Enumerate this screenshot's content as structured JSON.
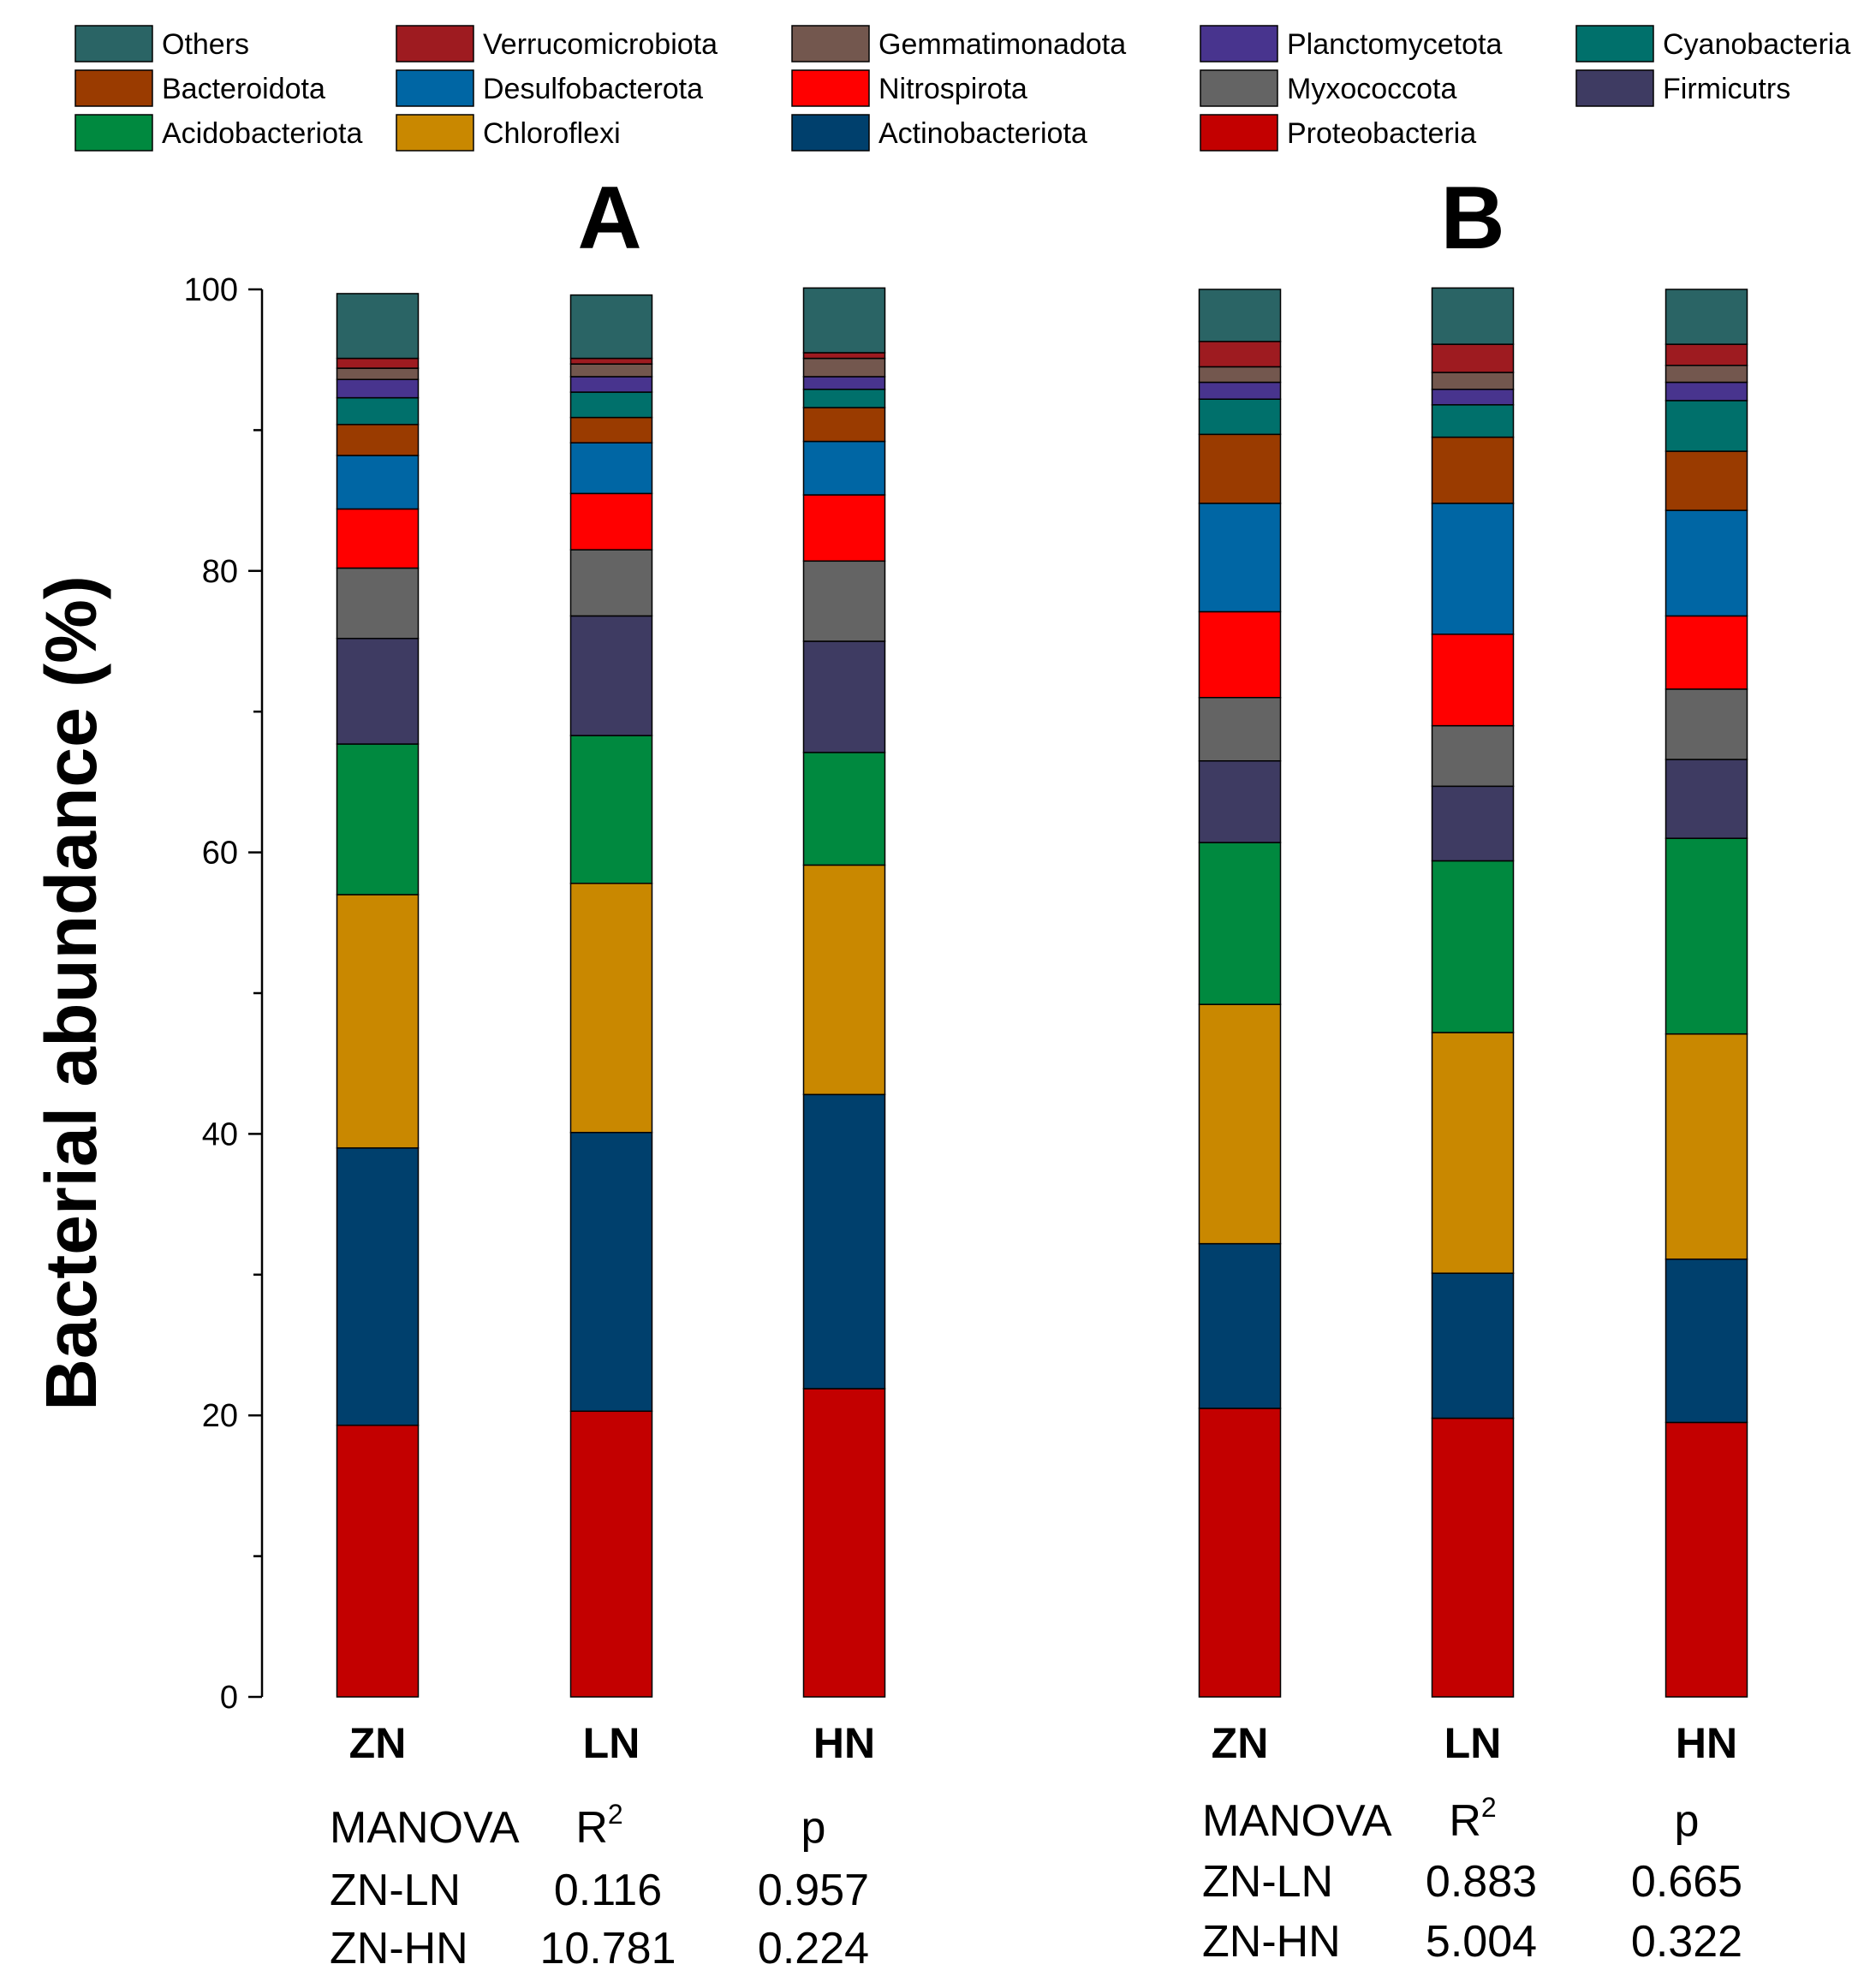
{
  "colors": {
    "Others": "#2a6465",
    "Verrucomicrobiota": "#9e1b20",
    "Gemmatimonadota": "#73574e",
    "Planctomycetota": "#48348e",
    "Cyanobacteria": "#00706b",
    "Bacteroidota": "#9a3b00",
    "Desulfobacterota": "#0066a4",
    "Nitrospirota": "#ff0000",
    "Myxococcota": "#646464",
    "Firmicutrs": "#3e3b62",
    "Acidobacteriota": "#00893f",
    "Chloroflexi": "#c98800",
    "Actinobacteriota": "#00406d",
    "Proteobacteria": "#c30000"
  },
  "chart_data": {
    "type": "bar",
    "stacked": true,
    "ylabel": "Bacterial abundance (%)",
    "ylim": [
      0,
      100
    ],
    "yticks": [
      0,
      20,
      40,
      60,
      80,
      100
    ],
    "legend": [
      "Others",
      "Verrucomicrobiota",
      "Gemmatimonadota",
      "Planctomycetota",
      "Cyanobacteria",
      "Bacteroidota",
      "Desulfobacterota",
      "Nitrospirota",
      "Myxococcota",
      "Firmicutrs",
      "Acidobacteriota",
      "Chloroflexi",
      "Actinobacteriota",
      "Proteobacteria"
    ],
    "panels": [
      {
        "label": "A",
        "categories": [
          "ZN",
          "LN",
          "HN"
        ],
        "series": [
          {
            "name": "Proteobacteria",
            "values": [
              19.3,
              20.3,
              21.9
            ]
          },
          {
            "name": "Actinobacteriota",
            "values": [
              19.7,
              19.8,
              20.9
            ]
          },
          {
            "name": "Chloroflexi",
            "values": [
              18.0,
              17.7,
              16.3
            ]
          },
          {
            "name": "Acidobacteriota",
            "values": [
              10.7,
              10.5,
              8.0
            ]
          },
          {
            "name": "Firmicutrs",
            "values": [
              7.5,
              8.5,
              7.9
            ]
          },
          {
            "name": "Myxococcota",
            "values": [
              5.0,
              4.7,
              5.7
            ]
          },
          {
            "name": "Nitrospirota",
            "values": [
              4.2,
              4.0,
              4.7
            ]
          },
          {
            "name": "Desulfobacterota",
            "values": [
              3.8,
              3.6,
              3.8
            ]
          },
          {
            "name": "Bacteroidota",
            "values": [
              2.2,
              1.8,
              2.4
            ]
          },
          {
            "name": "Cyanobacteria",
            "values": [
              1.9,
              1.8,
              1.3
            ]
          },
          {
            "name": "Planctomycetota",
            "values": [
              1.3,
              1.1,
              0.9
            ]
          },
          {
            "name": "Gemmatimonadota",
            "values": [
              0.8,
              0.9,
              1.3
            ]
          },
          {
            "name": "Verrucomicrobiota",
            "values": [
              0.7,
              0.4,
              0.4
            ]
          },
          {
            "name": "Others",
            "values": [
              4.6,
              4.5,
              4.6
            ]
          }
        ],
        "stats": {
          "headers": [
            "MANOVA",
            "R",
            "2",
            "p"
          ],
          "rows": [
            {
              "label": "ZN-LN",
              "r2": "0.116",
              "p": "0.957"
            },
            {
              "label": "ZN-HN",
              "r2": "10.781",
              "p": "0.224"
            }
          ]
        }
      },
      {
        "label": "B",
        "categories": [
          "ZN",
          "LN",
          "HN"
        ],
        "series": [
          {
            "name": "Proteobacteria",
            "values": [
              20.5,
              19.8,
              19.5
            ]
          },
          {
            "name": "Actinobacteriota",
            "values": [
              11.7,
              10.3,
              11.6
            ]
          },
          {
            "name": "Chloroflexi",
            "values": [
              17.0,
              17.1,
              16.0
            ]
          },
          {
            "name": "Acidobacteriota",
            "values": [
              11.5,
              12.2,
              13.9
            ]
          },
          {
            "name": "Firmicutrs",
            "values": [
              5.8,
              5.3,
              5.6
            ]
          },
          {
            "name": "Myxococcota",
            "values": [
              4.5,
              4.3,
              5.0
            ]
          },
          {
            "name": "Nitrospirota",
            "values": [
              6.1,
              6.5,
              5.2
            ]
          },
          {
            "name": "Desulfobacterota",
            "values": [
              7.7,
              9.3,
              7.5
            ]
          },
          {
            "name": "Bacteroidota",
            "values": [
              4.9,
              4.7,
              4.2
            ]
          },
          {
            "name": "Cyanobacteria",
            "values": [
              2.5,
              2.3,
              3.6
            ]
          },
          {
            "name": "Planctomycetota",
            "values": [
              1.2,
              1.1,
              1.3
            ]
          },
          {
            "name": "Gemmatimonadota",
            "values": [
              1.1,
              1.2,
              1.2
            ]
          },
          {
            "name": "Verrucomicrobiota",
            "values": [
              1.8,
              2.0,
              1.5
            ]
          },
          {
            "name": "Others",
            "values": [
              3.7,
              4.0,
              3.9
            ]
          }
        ],
        "stats": {
          "headers": [
            "MANOVA",
            "R",
            "2",
            "p"
          ],
          "rows": [
            {
              "label": "ZN-LN",
              "r2": "0.883",
              "p": "0.665"
            },
            {
              "label": "ZN-HN",
              "r2": "5.004",
              "p": "0.322"
            }
          ]
        }
      }
    ]
  }
}
